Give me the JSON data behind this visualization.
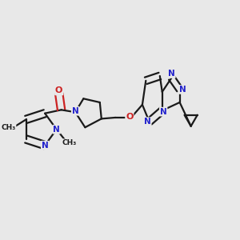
{
  "background_color": "#e8e8e8",
  "bond_color": "#1a1a1a",
  "nitrogen_color": "#2222cc",
  "oxygen_color": "#cc2222",
  "line_width": 1.6,
  "figsize": [
    3.0,
    3.0
  ],
  "dpi": 100,
  "xlim": [
    0.0,
    1.0
  ],
  "ylim": [
    0.25,
    0.85
  ]
}
